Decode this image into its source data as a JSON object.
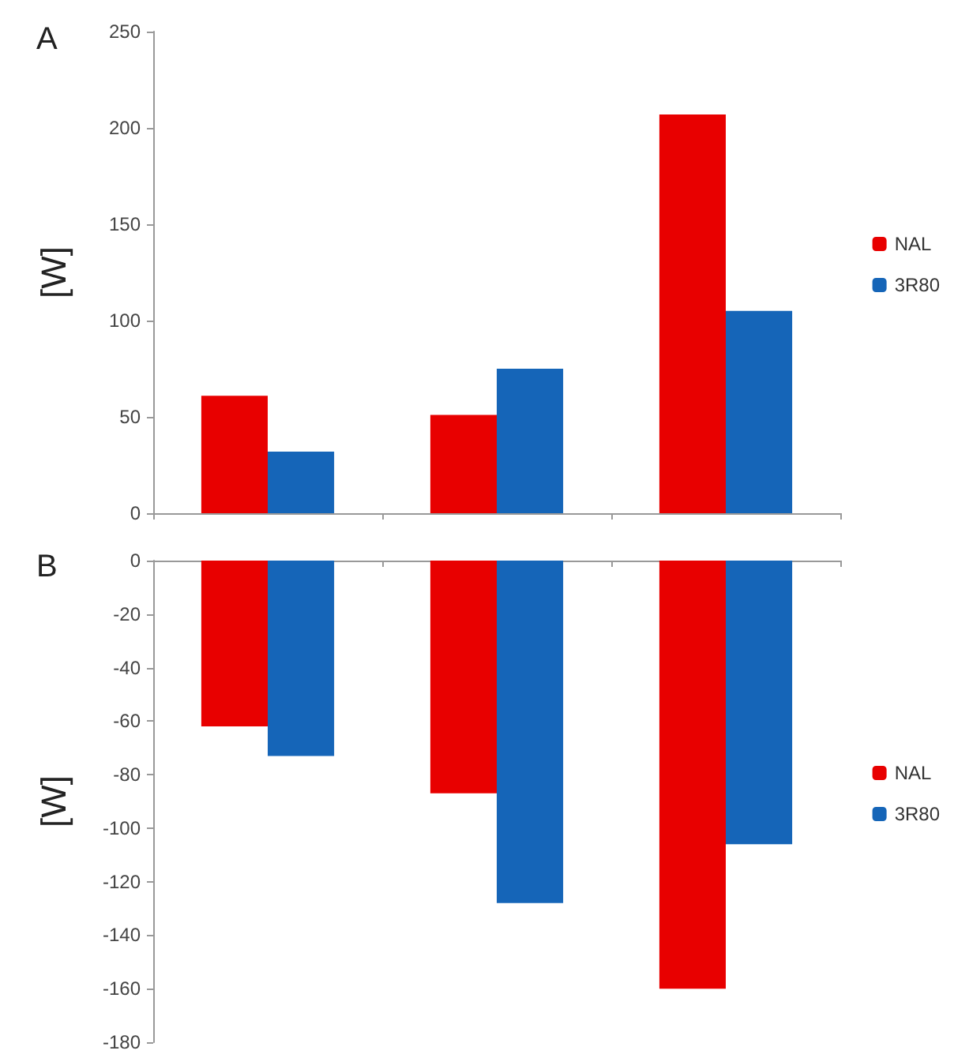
{
  "chart_data": [
    {
      "type": "bar",
      "title": "A",
      "ylabel": "[W]",
      "categories": [
        null,
        null,
        null
      ],
      "series": [
        {
          "name": "NAL",
          "color": "#e80000",
          "values": [
            61,
            51,
            207
          ]
        },
        {
          "name": "3R80",
          "color": "#1565b8",
          "values": [
            32,
            75,
            105
          ]
        }
      ],
      "ylim": [
        0,
        250
      ],
      "yticks": [
        0,
        50,
        100,
        150,
        200,
        250
      ],
      "grid": false,
      "legend": "right"
    },
    {
      "type": "bar",
      "title": "B",
      "ylabel": "[W]",
      "categories": [
        null,
        null,
        null
      ],
      "series": [
        {
          "name": "NAL",
          "color": "#e80000",
          "values": [
            -62,
            -87,
            -160
          ]
        },
        {
          "name": "3R80",
          "color": "#1565b8",
          "values": [
            -73,
            -128,
            -106
          ]
        }
      ],
      "ylim": [
        -180,
        0
      ],
      "yticks": [
        -180,
        -160,
        -140,
        -120,
        -100,
        -80,
        -60,
        -40,
        -20,
        0
      ],
      "grid": false,
      "legend": "right"
    }
  ]
}
